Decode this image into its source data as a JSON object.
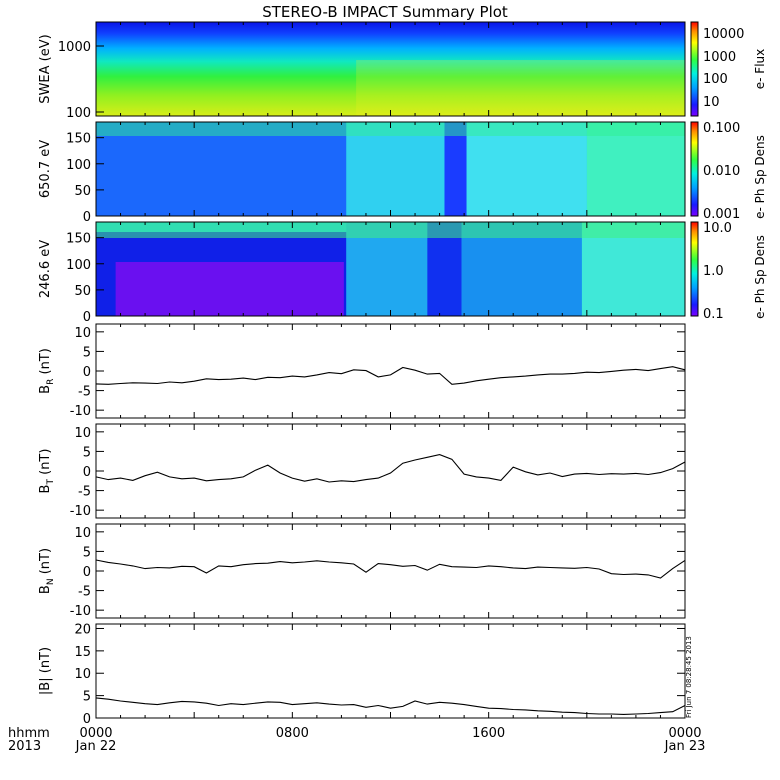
{
  "title": "STEREO-B IMPACT Summary Plot",
  "footer": {
    "time_label": "hhmm",
    "year_label": "2013",
    "x_ticks": [
      "0000",
      "0800",
      "1600",
      "0000"
    ],
    "x_tick_dates": [
      "Jan 22",
      "",
      "",
      "Jan 23"
    ]
  },
  "timestamp": "Fri Jun  7 08:28:45 2013",
  "chart_data": [
    {
      "type": "heatmap",
      "ylabel": "SWEA (eV)",
      "yscale": "log",
      "yticks": [
        "100",
        "1000"
      ],
      "colorbar_label": "e- Flux",
      "colorbar_scale": "log",
      "colorbar_ticks": [
        "10",
        "100",
        "1000",
        "10000"
      ]
    },
    {
      "type": "heatmap",
      "ylabel": "650.7 eV",
      "ylim": [
        0,
        180
      ],
      "yticks": [
        "0",
        "50",
        "100",
        "150"
      ],
      "colorbar_label": "e- Ph Sp Dens",
      "colorbar_scale": "log",
      "colorbar_ticks": [
        "0.001",
        "0.010",
        "0.100"
      ]
    },
    {
      "type": "heatmap",
      "ylabel": "246.6 eV",
      "ylim": [
        0,
        180
      ],
      "yticks": [
        "0",
        "50",
        "100",
        "150"
      ],
      "colorbar_label": "e- Ph Sp Dens",
      "colorbar_scale": "log",
      "colorbar_ticks": [
        "0.1",
        "1.0",
        "10.0"
      ]
    },
    {
      "type": "line",
      "ylabel_main": "B",
      "ylabel_sub": "R",
      "ylabel_unit": " (nT)",
      "ylim": [
        -12,
        12
      ],
      "yticks": [
        "-10",
        "-5",
        "0",
        "5",
        "10"
      ],
      "x_hours": [
        0,
        0.5,
        1,
        1.5,
        2,
        2.5,
        3,
        3.5,
        4,
        4.5,
        5,
        5.5,
        6,
        6.5,
        7,
        7.5,
        8,
        8.5,
        9,
        9.5,
        10,
        10.5,
        11,
        11.5,
        12,
        12.5,
        13,
        13.5,
        14,
        14.5,
        15,
        15.5,
        16,
        16.5,
        17,
        17.5,
        18,
        18.5,
        19,
        19.5,
        20,
        20.5,
        21,
        21.5,
        22,
        22.5,
        23,
        23.5,
        24
      ],
      "values": [
        -3.3,
        -3.4,
        -3.2,
        -3.0,
        -3.1,
        -3.2,
        -2.8,
        -3.0,
        -2.6,
        -2.0,
        -2.2,
        -2.1,
        -1.8,
        -2.2,
        -1.6,
        -1.7,
        -1.3,
        -1.5,
        -1.0,
        -0.4,
        -0.7,
        0.3,
        0.1,
        -1.5,
        -1.0,
        0.9,
        0.2,
        -0.8,
        -0.6,
        -3.4,
        -3.1,
        -2.5,
        -2.1,
        -1.7,
        -1.5,
        -1.3,
        -1.0,
        -0.8,
        -0.8,
        -0.6,
        -0.3,
        -0.4,
        -0.1,
        0.2,
        0.4,
        0.1,
        0.6,
        1.1,
        0.3
      ]
    },
    {
      "type": "line",
      "ylabel_main": "B",
      "ylabel_sub": "T",
      "ylabel_unit": " (nT)",
      "ylim": [
        -12,
        12
      ],
      "yticks": [
        "-10",
        "-5",
        "0",
        "5",
        "10"
      ],
      "x_hours": [
        0,
        0.5,
        1,
        1.5,
        2,
        2.5,
        3,
        3.5,
        4,
        4.5,
        5,
        5.5,
        6,
        6.5,
        7,
        7.5,
        8,
        8.5,
        9,
        9.5,
        10,
        10.5,
        11,
        11.5,
        12,
        12.5,
        13,
        13.5,
        14,
        14.5,
        15,
        15.5,
        16,
        16.5,
        17,
        17.5,
        18,
        18.5,
        19,
        19.5,
        20,
        20.5,
        21,
        21.5,
        22,
        22.5,
        23,
        23.5,
        24
      ],
      "values": [
        -1.5,
        -2.2,
        -1.8,
        -2.4,
        -1.2,
        -0.3,
        -1.5,
        -2.0,
        -1.8,
        -2.5,
        -2.2,
        -2.0,
        -1.5,
        0.2,
        1.5,
        -0.5,
        -1.8,
        -2.6,
        -2.0,
        -2.8,
        -2.5,
        -2.7,
        -2.2,
        -1.8,
        -0.5,
        2.0,
        2.8,
        3.5,
        4.2,
        3.0,
        -0.8,
        -1.5,
        -1.8,
        -2.4,
        1.0,
        -0.2,
        -1.0,
        -0.5,
        -1.4,
        -0.8,
        -0.6,
        -0.9,
        -0.7,
        -0.8,
        -0.6,
        -0.9,
        -0.4,
        0.6,
        2.3
      ]
    },
    {
      "type": "line",
      "ylabel_main": "B",
      "ylabel_sub": "N",
      "ylabel_unit": " (nT)",
      "ylim": [
        -12,
        12
      ],
      "yticks": [
        "-10",
        "-5",
        "0",
        "5",
        "10"
      ],
      "x_hours": [
        0,
        0.5,
        1,
        1.5,
        2,
        2.5,
        3,
        3.5,
        4,
        4.5,
        5,
        5.5,
        6,
        6.5,
        7,
        7.5,
        8,
        8.5,
        9,
        9.5,
        10,
        10.5,
        11,
        11.5,
        12,
        12.5,
        13,
        13.5,
        14,
        14.5,
        15,
        15.5,
        16,
        16.5,
        17,
        17.5,
        18,
        18.5,
        19,
        19.5,
        20,
        20.5,
        21,
        21.5,
        22,
        22.5,
        23,
        23.5,
        24
      ],
      "values": [
        2.8,
        2.2,
        1.8,
        1.3,
        0.6,
        0.9,
        0.8,
        1.2,
        1.1,
        -0.5,
        1.3,
        1.1,
        1.6,
        1.9,
        2.0,
        2.4,
        2.1,
        2.3,
        2.6,
        2.3,
        2.1,
        1.8,
        -0.3,
        1.9,
        1.6,
        1.2,
        1.4,
        0.2,
        1.7,
        1.1,
        1.0,
        0.9,
        1.3,
        1.1,
        0.8,
        0.6,
        1.0,
        0.9,
        0.8,
        0.7,
        0.9,
        0.5,
        -0.7,
        -0.9,
        -0.8,
        -1.0,
        -1.8,
        0.6,
        2.7
      ]
    },
    {
      "type": "line",
      "ylabel_main": "|B|",
      "ylabel_sub": "",
      "ylabel_unit": " (nT)",
      "ylim": [
        0,
        21
      ],
      "yticks": [
        "0",
        "5",
        "10",
        "15",
        "20"
      ],
      "x_hours": [
        0,
        0.5,
        1,
        1.5,
        2,
        2.5,
        3,
        3.5,
        4,
        4.5,
        5,
        5.5,
        6,
        6.5,
        7,
        7.5,
        8,
        8.5,
        9,
        9.5,
        10,
        10.5,
        11,
        11.5,
        12,
        12.5,
        13,
        13.5,
        14,
        14.5,
        15,
        15.5,
        16,
        16.5,
        17,
        17.5,
        18,
        18.5,
        19,
        19.5,
        20,
        20.5,
        21,
        21.5,
        22,
        22.5,
        23,
        23.5,
        24
      ],
      "values": [
        4.5,
        4.2,
        3.8,
        3.5,
        3.2,
        3.0,
        3.4,
        3.7,
        3.6,
        3.3,
        2.8,
        3.2,
        3.0,
        3.3,
        3.6,
        3.5,
        3.0,
        3.2,
        3.4,
        3.1,
        2.9,
        3.0,
        2.4,
        2.8,
        2.2,
        2.6,
        3.8,
        3.1,
        3.5,
        3.3,
        3.0,
        2.6,
        2.2,
        2.1,
        1.9,
        1.8,
        1.6,
        1.5,
        1.3,
        1.2,
        1.0,
        0.9,
        0.9,
        0.8,
        0.9,
        1.0,
        1.2,
        1.4,
        2.8
      ]
    }
  ]
}
